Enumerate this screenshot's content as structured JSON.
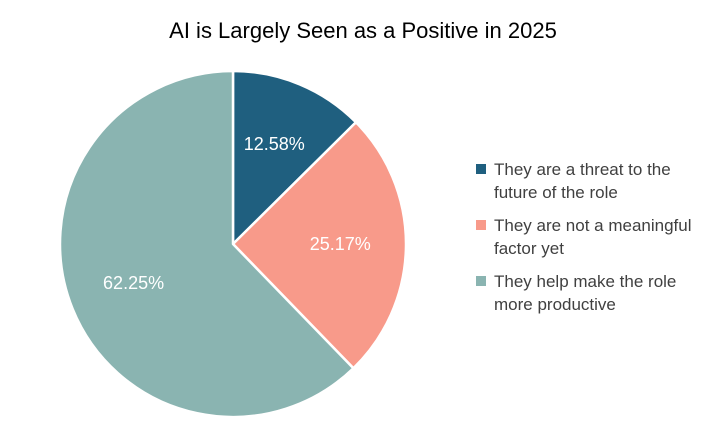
{
  "chart_data": {
    "type": "pie",
    "title": "AI is Largely Seen as a Positive in 2025",
    "slices": [
      {
        "name": "They are a threat to the future of the role",
        "value": 12.58,
        "label": "12.58%",
        "color": "#1f5f7f"
      },
      {
        "name": "They are not a meaningful factor yet",
        "value": 25.17,
        "label": "25.17%",
        "color": "#f89a8a"
      },
      {
        "name": "They help make the role more productive",
        "value": 62.25,
        "label": "62.25%",
        "color": "#8ab4b1"
      }
    ],
    "legend_position": "right",
    "start_angle": "top",
    "direction": "clockwise"
  }
}
